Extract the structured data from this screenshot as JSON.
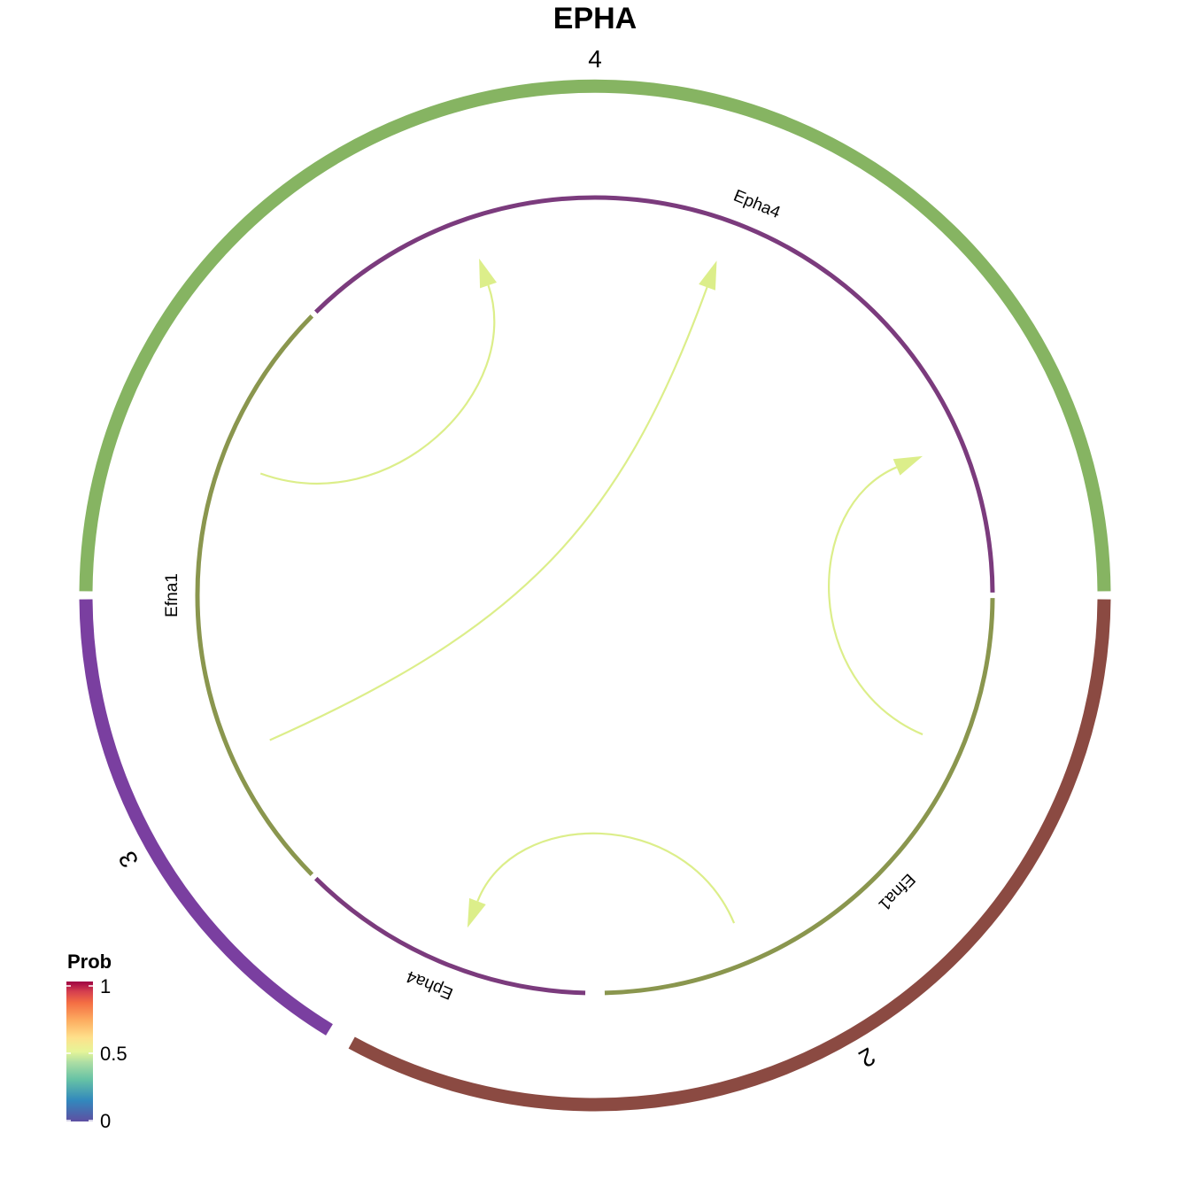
{
  "title": "EPHA",
  "colors": {
    "group_2": "#8B4A42",
    "group_3": "#7A3FA0",
    "group_4": "#86B462",
    "ligand_track": "#8A964E",
    "receptor_track": "#7B3B7D",
    "link": "#DCEE8A"
  },
  "chart_data": {
    "type": "chord",
    "groups": [
      {
        "name": "4",
        "start_deg": 180,
        "end_deg": 360
      },
      {
        "name": "2",
        "start_deg": 0,
        "end_deg": 119
      },
      {
        "name": "3",
        "start_deg": 121,
        "end_deg": 180
      }
    ],
    "sectors": [
      {
        "id": "efna1-2",
        "gene": "Efna1",
        "group": "2",
        "role": "ligand",
        "start_deg": 0,
        "end_deg": 89
      },
      {
        "id": "epha4-2",
        "gene": "Epha4",
        "group": "2",
        "role": "receptor",
        "start_deg": 91,
        "end_deg": 135
      },
      {
        "id": "efna1-3",
        "gene": "Efna1",
        "group": "3",
        "role": "ligand",
        "start_deg": 135,
        "end_deg": 225
      },
      {
        "id": "epha4-4",
        "gene": "Epha4",
        "group": "4",
        "role": "receptor",
        "start_deg": 225,
        "end_deg": 360
      }
    ],
    "links": [
      {
        "source_gene": "Efna1",
        "source_group": "3",
        "target_gene": "Epha4",
        "target_group": "4",
        "from_deg": 200,
        "to_deg": 251,
        "prob": 0.5
      },
      {
        "source_gene": "Efna1",
        "source_group": "3",
        "target_gene": "Epha4",
        "target_group": "4",
        "from_deg": 156,
        "to_deg": 290,
        "prob": 0.5
      },
      {
        "source_gene": "Efna1",
        "source_group": "2",
        "target_gene": "Epha4",
        "target_group": "4",
        "from_deg": 23,
        "to_deg": 337,
        "prob": 0.5
      },
      {
        "source_gene": "Efna1",
        "source_group": "2",
        "target_gene": "Epha4",
        "target_group": "2",
        "from_deg": 67,
        "to_deg": 111,
        "prob": 0.5
      }
    ],
    "legend": {
      "title": "Prob",
      "ticks": [
        "1",
        "0.5",
        "0"
      ],
      "range": [
        0,
        1
      ],
      "placement": "bottom-left"
    }
  }
}
